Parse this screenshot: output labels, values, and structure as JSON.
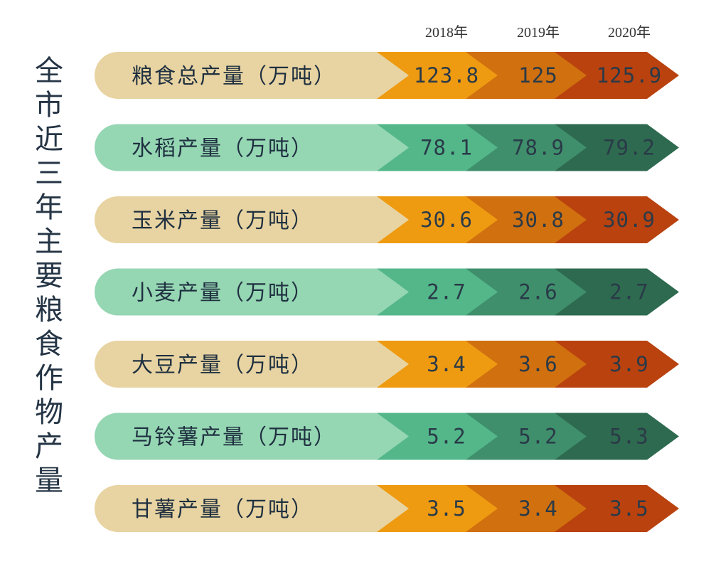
{
  "title": "全市近三年主要粮食作物产量",
  "years": [
    "2018年",
    "2019年",
    "2020年"
  ],
  "rows": [
    {
      "label": "粮食总产量（万吨）",
      "values": [
        123.8,
        125,
        125.9
      ]
    },
    {
      "label": "水稻产量（万吨）",
      "values": [
        78.1,
        78.9,
        79.2
      ]
    },
    {
      "label": "玉米产量（万吨）",
      "values": [
        30.6,
        30.8,
        30.9
      ]
    },
    {
      "label": "小麦产量（万吨）",
      "values": [
        2.7,
        2.6,
        2.7
      ]
    },
    {
      "label": "大豆产量（万吨）",
      "values": [
        3.4,
        3.6,
        3.9
      ]
    },
    {
      "label": "马铃薯产量（万吨）",
      "values": [
        5.2,
        5.2,
        5.3
      ]
    },
    {
      "label": "甘薯产量（万吨）",
      "values": [
        3.5,
        3.4,
        3.5
      ]
    }
  ]
}
